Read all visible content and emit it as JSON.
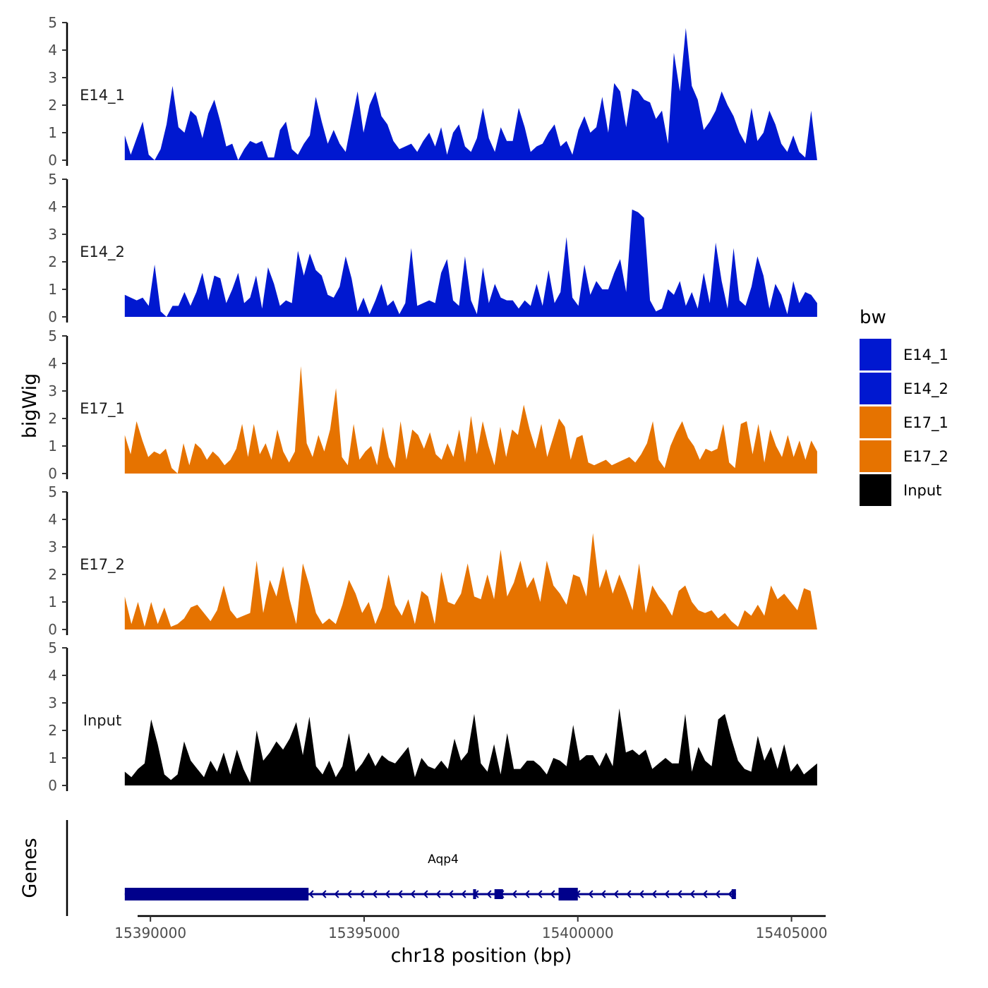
{
  "chart_data": {
    "type": "area",
    "title": "",
    "ylabel": "bigWig",
    "xlabel": "chr18 position (bp)",
    "ylim": [
      0,
      5
    ],
    "yticks": [
      "0",
      "1",
      "2",
      "3",
      "4",
      "5"
    ],
    "xlim": [
      15389700,
      15405800
    ],
    "xticks": [
      15390000,
      15395000,
      15400000,
      15405000
    ],
    "xtick_labels": [
      "15390000",
      "15395000",
      "15400000",
      "15405000"
    ],
    "x_start": 15389400,
    "x_end": 15405600,
    "legend": {
      "title": "bw",
      "placement": "right",
      "entries": [
        {
          "label": "E14_1",
          "color": "#0018d0"
        },
        {
          "label": "E14_2",
          "color": "#0018d0"
        },
        {
          "label": "E17_1",
          "color": "#e67300"
        },
        {
          "label": "E17_2",
          "color": "#e67300"
        },
        {
          "label": "Input",
          "color": "#000000"
        }
      ]
    },
    "series": [
      {
        "name": "E14_1",
        "color": "#0018d0",
        "values": [
          0.9,
          0.2,
          0.8,
          1.4,
          0.2,
          0,
          0.4,
          1.3,
          2.7,
          1.2,
          1.0,
          1.8,
          1.6,
          0.8,
          1.7,
          2.2,
          1.4,
          0.5,
          0.6,
          0,
          0.4,
          0.7,
          0.6,
          0.7,
          0.1,
          0.1,
          1.1,
          1.4,
          0.4,
          0.2,
          0.6,
          0.9,
          2.3,
          1.4,
          0.6,
          1.1,
          0.6,
          0.3,
          1.4,
          2.5,
          1.0,
          2.0,
          2.5,
          1.6,
          1.3,
          0.7,
          0.4,
          0.5,
          0.6,
          0.3,
          0.7,
          1.0,
          0.5,
          1.2,
          0.2,
          1.0,
          1.3,
          0.5,
          0.3,
          0.8,
          1.9,
          0.8,
          0.3,
          1.2,
          0.7,
          0.7,
          1.9,
          1.2,
          0.3,
          0.5,
          0.6,
          1.0,
          1.3,
          0.5,
          0.7,
          0.2,
          1.1,
          1.6,
          1.0,
          1.2,
          2.3,
          1.0,
          2.8,
          2.5,
          1.2,
          2.6,
          2.5,
          2.2,
          2.1,
          1.5,
          1.8,
          0.6,
          3.9,
          2.5,
          4.8,
          2.7,
          2.2,
          1.1,
          1.4,
          1.8,
          2.5,
          2.0,
          1.6,
          1.0,
          0.6,
          1.9,
          0.7,
          1.0,
          1.8,
          1.3,
          0.6,
          0.3,
          0.9,
          0.3,
          0.1,
          1.8,
          0
        ]
      },
      {
        "name": "E14_2",
        "color": "#0018d0",
        "values": [
          0.8,
          0.7,
          0.6,
          0.7,
          0.4,
          1.9,
          0.2,
          0,
          0.4,
          0.4,
          0.9,
          0.4,
          0.9,
          1.6,
          0.6,
          1.5,
          1.4,
          0.5,
          1.0,
          1.6,
          0.5,
          0.7,
          1.5,
          0.3,
          1.8,
          1.2,
          0.4,
          0.6,
          0.5,
          2.4,
          1.5,
          2.3,
          1.7,
          1.5,
          0.8,
          0.7,
          1.1,
          2.2,
          1.4,
          0.2,
          0.7,
          0.1,
          0.6,
          1.2,
          0.4,
          0.6,
          0.1,
          0.5,
          2.5,
          0.4,
          0.5,
          0.6,
          0.5,
          1.6,
          2.1,
          0.6,
          0.4,
          2.2,
          0.6,
          0.1,
          1.8,
          0.5,
          1.2,
          0.7,
          0.6,
          0.6,
          0.3,
          0.6,
          0.4,
          1.2,
          0.4,
          1.7,
          0.5,
          0.9,
          2.9,
          0.7,
          0.4,
          1.9,
          0.8,
          1.3,
          1.0,
          1.0,
          1.6,
          2.1,
          0.9,
          3.9,
          3.8,
          3.6,
          0.6,
          0.2,
          0.3,
          1.0,
          0.8,
          1.3,
          0.4,
          0.9,
          0.3,
          1.6,
          0.5,
          2.7,
          1.3,
          0.3,
          2.5,
          0.6,
          0.4,
          1.1,
          2.2,
          1.5,
          0.3,
          1.2,
          0.8,
          0.1,
          1.3,
          0.5,
          0.9,
          0.8,
          0.5
        ]
      },
      {
        "name": "E17_1",
        "color": "#e67300",
        "values": [
          1.4,
          0.7,
          1.9,
          1.2,
          0.6,
          0.8,
          0.7,
          0.9,
          0.2,
          0,
          1.1,
          0.3,
          1.1,
          0.9,
          0.5,
          0.8,
          0.6,
          0.3,
          0.5,
          0.9,
          1.8,
          0.6,
          1.8,
          0.7,
          1.1,
          0.5,
          1.6,
          0.8,
          0.4,
          0.8,
          3.9,
          1.1,
          0.6,
          1.4,
          0.8,
          1.6,
          3.1,
          0.6,
          0.3,
          1.8,
          0.5,
          0.8,
          1.0,
          0.3,
          1.7,
          0.6,
          0.2,
          1.9,
          0.5,
          1.6,
          1.4,
          0.9,
          1.5,
          0.7,
          0.5,
          1.1,
          0.6,
          1.6,
          0.4,
          2.1,
          0.7,
          1.9,
          1.0,
          0.3,
          1.7,
          0.6,
          1.6,
          1.4,
          2.5,
          1.6,
          0.9,
          1.8,
          0.6,
          1.3,
          2.0,
          1.7,
          0.5,
          1.3,
          1.4,
          0.4,
          0.3,
          0.4,
          0.5,
          0.3,
          0.4,
          0.5,
          0.6,
          0.4,
          0.7,
          1.1,
          1.9,
          0.5,
          0.2,
          1.0,
          1.5,
          1.9,
          1.3,
          1.0,
          0.5,
          0.9,
          0.8,
          0.9,
          1.8,
          0.4,
          0.2,
          1.8,
          1.9,
          0.7,
          1.8,
          0.4,
          1.6,
          1.0,
          0.6,
          1.4,
          0.6,
          1.2,
          0.5,
          1.2,
          0.8
        ]
      },
      {
        "name": "E17_2",
        "color": "#e67300",
        "values": [
          1.2,
          0.2,
          1.0,
          0.1,
          1.0,
          0.2,
          0.8,
          0.1,
          0.2,
          0.4,
          0.8,
          0.9,
          0.6,
          0.3,
          0.7,
          1.6,
          0.7,
          0.4,
          0.5,
          0.6,
          2.5,
          0.6,
          1.8,
          1.2,
          2.3,
          1.1,
          0.2,
          2.4,
          1.6,
          0.6,
          0.2,
          0.4,
          0.2,
          0.9,
          1.8,
          1.3,
          0.6,
          1.0,
          0.2,
          0.8,
          2.0,
          0.9,
          0.5,
          1.1,
          0.2,
          1.4,
          1.2,
          0.2,
          2.1,
          1.0,
          0.9,
          1.3,
          2.4,
          1.2,
          1.1,
          2.0,
          1.1,
          2.9,
          1.2,
          1.7,
          2.5,
          1.5,
          1.9,
          1.0,
          2.5,
          1.6,
          1.3,
          0.9,
          2.0,
          1.9,
          1.2,
          3.5,
          1.5,
          2.2,
          1.3,
          2.0,
          1.4,
          0.7,
          2.4,
          0.6,
          1.6,
          1.2,
          0.9,
          0.5,
          1.4,
          1.6,
          1.0,
          0.7,
          0.6,
          0.7,
          0.4,
          0.6,
          0.3,
          0.1,
          0.7,
          0.5,
          0.9,
          0.5,
          1.6,
          1.1,
          1.3,
          1.0,
          0.7,
          1.5,
          1.4,
          0
        ]
      },
      {
        "name": "Input",
        "color": "#000000",
        "values": [
          0.5,
          0.3,
          0.6,
          0.8,
          2.4,
          1.5,
          0.4,
          0.2,
          0.4,
          1.6,
          0.9,
          0.6,
          0.3,
          0.9,
          0.5,
          1.2,
          0.4,
          1.3,
          0.6,
          0.1,
          2.0,
          0.9,
          1.2,
          1.6,
          1.3,
          1.7,
          2.3,
          1.1,
          2.5,
          0.7,
          0.4,
          0.9,
          0.3,
          0.7,
          1.9,
          0.5,
          0.8,
          1.2,
          0.7,
          1.1,
          0.9,
          0.8,
          1.1,
          1.4,
          0.3,
          1.0,
          0.7,
          0.6,
          0.9,
          0.6,
          1.7,
          0.9,
          1.2,
          2.6,
          0.8,
          0.5,
          1.5,
          0.4,
          1.9,
          0.6,
          0.6,
          0.9,
          0.9,
          0.7,
          0.4,
          1.0,
          0.9,
          0.7,
          2.2,
          0.9,
          1.1,
          1.1,
          0.7,
          1.2,
          0.7,
          2.8,
          1.2,
          1.3,
          1.1,
          1.3,
          0.6,
          0.8,
          1.0,
          0.8,
          0.8,
          2.6,
          0.5,
          1.4,
          0.9,
          0.7,
          2.4,
          2.6,
          1.7,
          0.9,
          0.6,
          0.5,
          1.8,
          0.9,
          1.4,
          0.6,
          1.5,
          0.5,
          0.8,
          0.4,
          0.6,
          0.8
        ]
      }
    ],
    "gene_track": {
      "label": "Genes",
      "gene_name": "Aqp4",
      "strand": "-",
      "color": "#00008b",
      "start": 15389400,
      "end": 15403700,
      "exons": [
        {
          "start": 15389400,
          "end": 15393700,
          "thick": true
        },
        {
          "start": 15397550,
          "end": 15397620,
          "thick": false
        },
        {
          "start": 15398050,
          "end": 15398250,
          "thick": false
        },
        {
          "start": 15399550,
          "end": 15400000,
          "thick": true
        },
        {
          "start": 15403600,
          "end": 15403700,
          "thick": false
        }
      ]
    }
  }
}
